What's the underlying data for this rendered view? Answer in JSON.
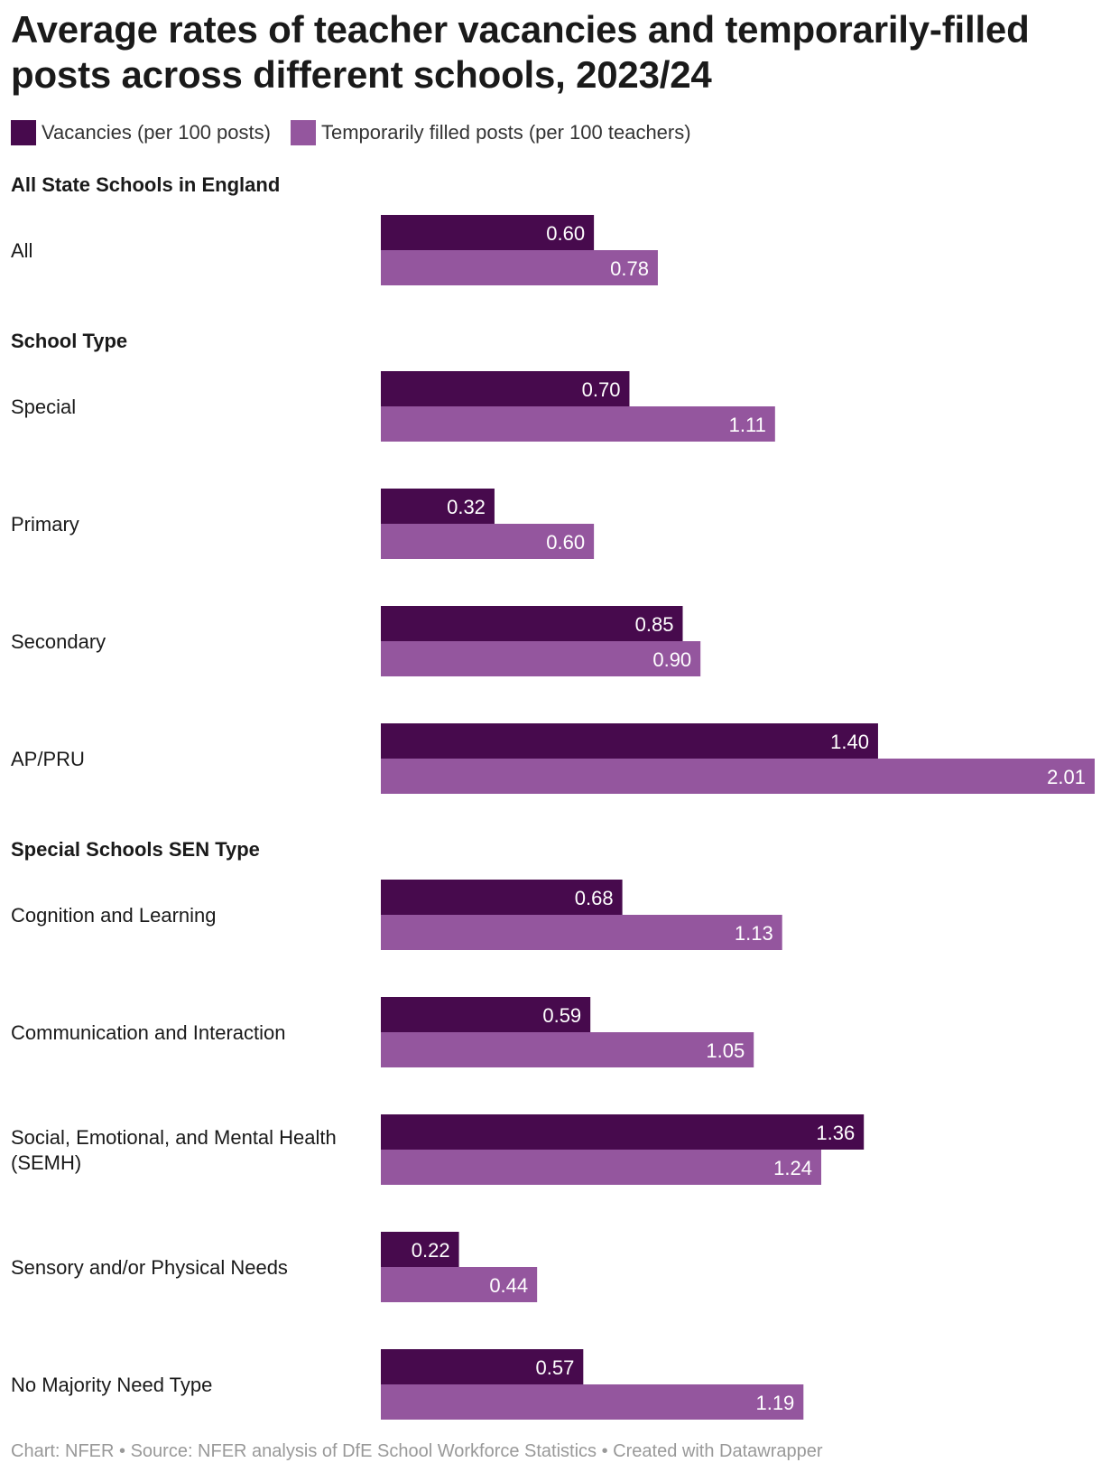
{
  "chart_data": {
    "type": "bar",
    "orientation": "horizontal",
    "title": "Average rates of teacher vacancies and temporarily-filled posts across different schools, 2023/24",
    "series": [
      {
        "name": "Vacancies (per 100 posts)",
        "color": "#470a4d"
      },
      {
        "name": "Temporarily filled posts (per 100 teachers)",
        "color": "#94569e"
      }
    ],
    "xlim": [
      0,
      2.01
    ],
    "groups": [
      {
        "heading": "All State Schools in England",
        "rows": [
          {
            "label": "All",
            "values": [
              0.6,
              0.78
            ],
            "display": [
              "0.60",
              "0.78"
            ]
          }
        ]
      },
      {
        "heading": "School Type",
        "rows": [
          {
            "label": "Special",
            "values": [
              0.7,
              1.11
            ],
            "display": [
              "0.70",
              "1.11"
            ]
          },
          {
            "label": "Primary",
            "values": [
              0.32,
              0.6
            ],
            "display": [
              "0.32",
              "0.60"
            ]
          },
          {
            "label": "Secondary",
            "values": [
              0.85,
              0.9
            ],
            "display": [
              "0.85",
              "0.90"
            ]
          },
          {
            "label": "AP/PRU",
            "values": [
              1.4,
              2.01
            ],
            "display": [
              "1.40",
              "2.01"
            ]
          }
        ]
      },
      {
        "heading": "Special Schools SEN Type",
        "rows": [
          {
            "label": "Cognition and Learning",
            "values": [
              0.68,
              1.13
            ],
            "display": [
              "0.68",
              "1.13"
            ]
          },
          {
            "label": "Communication and Interaction",
            "values": [
              0.59,
              1.05
            ],
            "display": [
              "0.59",
              "1.05"
            ]
          },
          {
            "label": [
              "Social, Emotional, and Mental Health",
              "(SEMH)"
            ],
            "values": [
              1.36,
              1.24
            ],
            "display": [
              "1.36",
              "1.24"
            ]
          },
          {
            "label": "Sensory and/or Physical Needs",
            "values": [
              0.22,
              0.44
            ],
            "display": [
              "0.22",
              "0.44"
            ]
          },
          {
            "label": "No Majority Need Type",
            "values": [
              0.57,
              1.19
            ],
            "display": [
              "0.57",
              "1.19"
            ]
          }
        ]
      }
    ]
  },
  "footer": {
    "text": "Chart: NFER • Source: NFER analysis of DfE School Workforce Statistics • Created with Datawrapper"
  }
}
